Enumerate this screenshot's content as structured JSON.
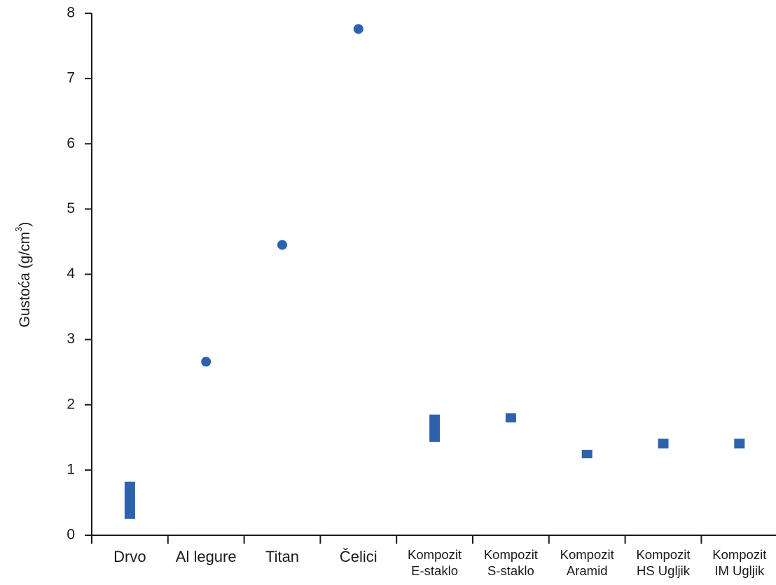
{
  "chart_data": {
    "type": "scatter",
    "ylabel": "Gustoća (g/cm³)",
    "ylabel_main": "Gustoća (g/cm",
    "ylabel_sup": "3",
    "ylabel_tail": ")",
    "ylim": [
      0,
      8
    ],
    "yticks": [
      "0",
      "1",
      "2",
      "3",
      "4",
      "5",
      "6",
      "7",
      "8"
    ],
    "categories": [
      {
        "label": [
          "Drvo"
        ],
        "min": 0.25,
        "max": 0.82,
        "marker": "range"
      },
      {
        "label": [
          "Al legure"
        ],
        "value": 2.66,
        "marker": "dot"
      },
      {
        "label": [
          "Titan"
        ],
        "value": 4.45,
        "marker": "dot"
      },
      {
        "label": [
          "Čelici"
        ],
        "value": 7.76,
        "marker": "dot"
      },
      {
        "label": [
          "Kompozit",
          "E-staklo"
        ],
        "min": 1.43,
        "max": 1.85,
        "marker": "range"
      },
      {
        "label": [
          "Kompozit",
          "S-staklo"
        ],
        "min": 1.73,
        "max": 1.87,
        "marker": "range"
      },
      {
        "label": [
          "Kompozit",
          "Aramid"
        ],
        "min": 1.18,
        "max": 1.31,
        "marker": "range"
      },
      {
        "label": [
          "Kompozit",
          "HS Ugljik"
        ],
        "min": 1.33,
        "max": 1.48,
        "marker": "range"
      },
      {
        "label": [
          "Kompozit",
          "IM Ugljik"
        ],
        "min": 1.33,
        "max": 1.48,
        "marker": "range"
      }
    ],
    "grid": false,
    "legend": "none",
    "marker_color": "#2e62ae",
    "axis_color": "#1a1a1a"
  }
}
